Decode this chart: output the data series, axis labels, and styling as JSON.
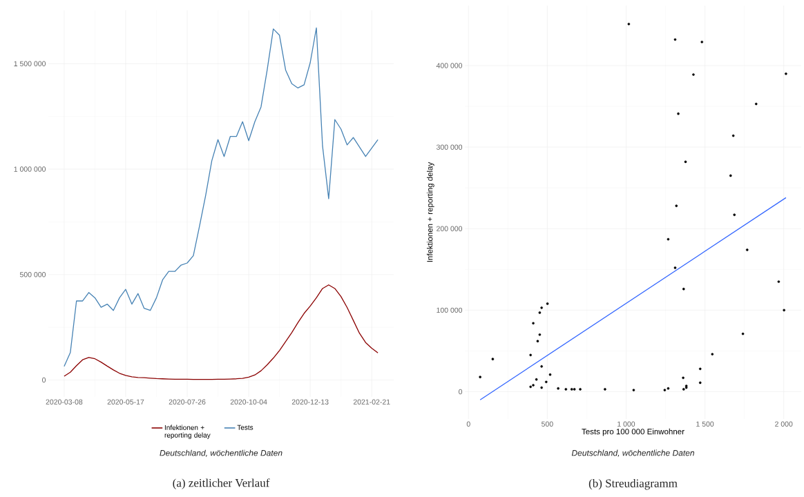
{
  "chart_data": [
    {
      "type": "line",
      "x": [
        "2020-03-08",
        "2020-03-15",
        "2020-03-22",
        "2020-03-29",
        "2020-04-05",
        "2020-04-12",
        "2020-04-19",
        "2020-04-26",
        "2020-05-03",
        "2020-05-10",
        "2020-05-17",
        "2020-05-24",
        "2020-05-31",
        "2020-06-07",
        "2020-06-14",
        "2020-06-21",
        "2020-06-28",
        "2020-07-05",
        "2020-07-12",
        "2020-07-19",
        "2020-07-26",
        "2020-08-02",
        "2020-08-09",
        "2020-08-16",
        "2020-08-23",
        "2020-08-30",
        "2020-09-06",
        "2020-09-13",
        "2020-09-20",
        "2020-09-27",
        "2020-10-04",
        "2020-10-11",
        "2020-10-18",
        "2020-10-25",
        "2020-11-01",
        "2020-11-08",
        "2020-11-15",
        "2020-11-22",
        "2020-11-29",
        "2020-12-06",
        "2020-12-13",
        "2020-12-20",
        "2020-12-27",
        "2021-01-03",
        "2021-01-10",
        "2021-01-17",
        "2021-01-24",
        "2021-01-31",
        "2021-02-07",
        "2021-02-14",
        "2021-02-21",
        "2021-02-28"
      ],
      "series": [
        {
          "name": "Infektionen + reporting delay",
          "color": "#8b0000",
          "values": [
            18000,
            37000,
            68000,
            96000,
            107000,
            101000,
            85000,
            66000,
            48000,
            32000,
            22000,
            15000,
            12000,
            11000,
            9000,
            7000,
            6000,
            5000,
            4000,
            4000,
            4000,
            3000,
            3000,
            3000,
            3000,
            4000,
            4000,
            5000,
            6000,
            8000,
            14000,
            24000,
            44000,
            72000,
            104000,
            140000,
            182000,
            225000,
            272000,
            316000,
            351000,
            390000,
            434000,
            451000,
            434000,
            396000,
            344000,
            283000,
            222000,
            178000,
            151000,
            129000
          ]
        },
        {
          "name": "Tests",
          "color": "#4682b4",
          "values": [
            65000,
            130000,
            375000,
            375000,
            415000,
            390000,
            345000,
            360000,
            330000,
            390000,
            430000,
            360000,
            410000,
            340000,
            330000,
            390000,
            475000,
            515000,
            515000,
            545000,
            555000,
            590000,
            730000,
            875000,
            1040000,
            1140000,
            1060000,
            1155000,
            1155000,
            1225000,
            1135000,
            1225000,
            1295000,
            1470000,
            1665000,
            1635000,
            1470000,
            1405000,
            1385000,
            1400000,
            1505000,
            1670000,
            1110000,
            860000,
            1235000,
            1190000,
            1115000,
            1150000,
            1105000,
            1060000,
            1100000,
            1140000
          ]
        }
      ],
      "xlim": [
        "2020-02-19",
        "2021-03-18"
      ],
      "ylim": [
        -80000,
        1753000
      ],
      "xticks": [
        "2020-03-08",
        "2020-05-17",
        "2020-07-26",
        "2020-10-04",
        "2020-12-13",
        "2021-02-21"
      ],
      "yticks": [
        0,
        {
          "value": 500000,
          "label": "500 000"
        },
        {
          "value": 1000000,
          "label": "1 000 000"
        },
        {
          "value": 1500000,
          "label": "1 500 000"
        }
      ],
      "grid": true,
      "legend": "bottom",
      "annotations": [
        "Deutschland, wöchentliche Daten",
        "(a) zeitlicher Verlauf"
      ]
    },
    {
      "type": "scatter",
      "xlabel": "Tests pro 100 000 Einwohner",
      "ylabel": "Infektionen + reporting delay",
      "series": [
        {
          "type": "scatter",
          "color": "#000000",
          "marker": "circle",
          "x": [
            74,
            154,
            394,
            394,
            411,
            411,
            431,
            439,
            452,
            452,
            464,
            464,
            464,
            493,
            501,
            518,
            569,
            618,
            655,
            672,
            709,
            866,
            1048,
            1245,
            1267,
            1267,
            1311,
            1362,
            1365,
            1365,
            1382,
            1382,
            1470,
            1470,
            1547,
            1741,
            1768,
            1968,
            2002,
            1017,
            1311,
            1481,
            1427,
            2014,
            1825,
            1331,
            1680,
            1377,
            1663,
            1319,
            1687
          ],
          "values": [
            18000,
            40000,
            45000,
            6000,
            8000,
            84000,
            15000,
            62000,
            97000,
            70000,
            103000,
            31000,
            5000,
            12000,
            108000,
            21000,
            4000,
            3000,
            3000,
            3000,
            3000,
            3000,
            2000,
            2000,
            4000,
            187000,
            152000,
            17000,
            126000,
            3000,
            7000,
            5000,
            28000,
            11000,
            46000,
            71000,
            174000,
            135000,
            100000,
            451000,
            432000,
            429000,
            389000,
            390000,
            353000,
            341000,
            314000,
            282000,
            265000,
            228000,
            217000
          ]
        },
        {
          "type": "line",
          "color": "#3366ff",
          "marker": "none",
          "x": [
            74,
            2014
          ],
          "values": [
            -10000,
            238000
          ]
        }
      ],
      "xlim": [
        -23,
        2111
      ],
      "ylim": [
        -33500,
        473700
      ],
      "xticks": [
        0,
        500,
        {
          "value": 1000,
          "label": "1 000"
        },
        {
          "value": 1500,
          "label": "1 500"
        },
        {
          "value": 2000,
          "label": "2 000"
        }
      ],
      "yticks": [
        0,
        {
          "value": 100000,
          "label": "100 000"
        },
        {
          "value": 200000,
          "label": "200 000"
        },
        {
          "value": 300000,
          "label": "300 000"
        },
        {
          "value": 400000,
          "label": "400 000"
        }
      ],
      "grid": true,
      "annotations": [
        "Deutschland, wöchentliche Daten",
        "(b) Streudiagramm"
      ]
    }
  ]
}
